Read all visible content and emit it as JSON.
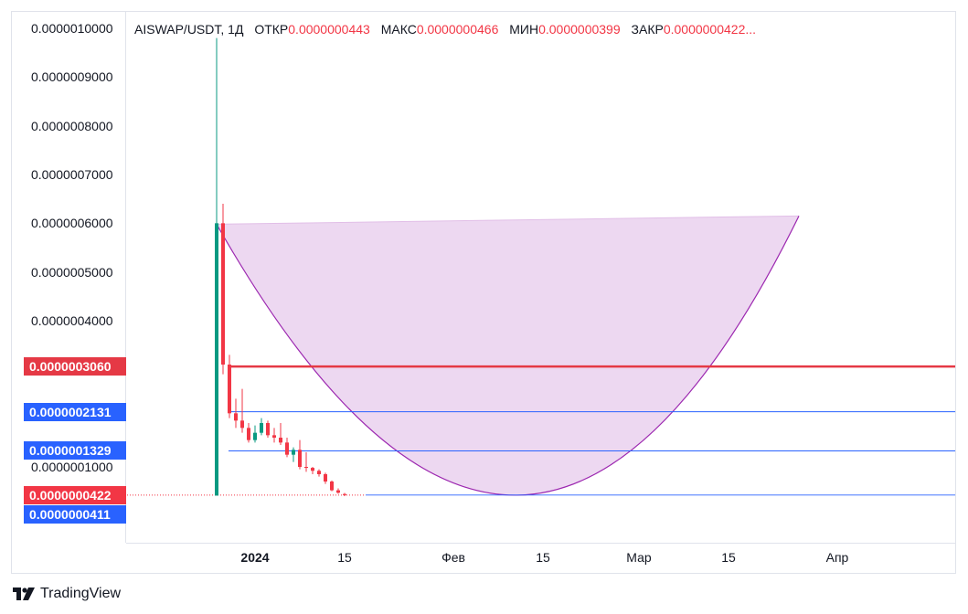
{
  "legend": {
    "symbol": "AISWAP/USDT, 1Д",
    "open_label": "ОТКР",
    "open_value": "0.0000000443",
    "high_label": "МАКС",
    "high_value": "0.0000000466",
    "low_label": "МИН",
    "low_value": "0.0000000399",
    "close_label": "ЗАКР",
    "close_value": "0.0000000422..."
  },
  "brand": {
    "name": "TradingView"
  },
  "chart_data": {
    "type": "candlestick",
    "price_ticks": [
      {
        "value": 1e-06,
        "label": "0.0000010000"
      },
      {
        "value": 9e-07,
        "label": "0.0000009000"
      },
      {
        "value": 8e-07,
        "label": "0.0000008000"
      },
      {
        "value": 7e-07,
        "label": "0.0000007000"
      },
      {
        "value": 6e-07,
        "label": "0.0000006000"
      },
      {
        "value": 5e-07,
        "label": "0.0000005000"
      },
      {
        "value": 4e-07,
        "label": "0.0000004000"
      },
      {
        "value": 1e-07,
        "label": "0.0000001000"
      }
    ],
    "time_ticks": [
      {
        "date": "2024-01-01",
        "label": "2024"
      },
      {
        "date": "2024-01-15",
        "label": "15"
      },
      {
        "date": "2024-02-01",
        "label": "Фев"
      },
      {
        "date": "2024-02-15",
        "label": "15"
      },
      {
        "date": "2024-03-01",
        "label": "Мар"
      },
      {
        "date": "2024-03-15",
        "label": "15"
      },
      {
        "date": "2024-04-01",
        "label": "Апр"
      }
    ],
    "x_range": [
      "2023-12-15",
      "2024-04-05"
    ],
    "price_range": [
      0.0,
      1.03e-06
    ],
    "candles": [
      {
        "date": "2023-12-26",
        "o": 4.11e-08,
        "h": 9.8e-07,
        "l": 4.11e-08,
        "c": 6e-07
      },
      {
        "date": "2023-12-27",
        "o": 6e-07,
        "h": 6.4e-07,
        "l": 2.9e-07,
        "c": 3.1e-07
      },
      {
        "date": "2023-12-28",
        "o": 3.1e-07,
        "h": 3.3e-07,
        "l": 2e-07,
        "c": 2.1e-07
      },
      {
        "date": "2023-12-29",
        "o": 2.1e-07,
        "h": 2.4e-07,
        "l": 1.8e-07,
        "c": 1.95e-07
      },
      {
        "date": "2023-12-30",
        "o": 1.95e-07,
        "h": 2.6e-07,
        "l": 1.7e-07,
        "c": 1.8e-07
      },
      {
        "date": "2023-12-31",
        "o": 1.8e-07,
        "h": 1.9e-07,
        "l": 1.5e-07,
        "c": 1.55e-07
      },
      {
        "date": "2024-01-01",
        "o": 1.55e-07,
        "h": 1.85e-07,
        "l": 1.5e-07,
        "c": 1.7e-07
      },
      {
        "date": "2024-01-02",
        "o": 1.7e-07,
        "h": 2e-07,
        "l": 1.65e-07,
        "c": 1.9e-07
      },
      {
        "date": "2024-01-03",
        "o": 1.9e-07,
        "h": 1.95e-07,
        "l": 1.6e-07,
        "c": 1.65e-07
      },
      {
        "date": "2024-01-04",
        "o": 1.65e-07,
        "h": 1.8e-07,
        "l": 1.5e-07,
        "c": 1.6e-07
      },
      {
        "date": "2024-01-05",
        "o": 1.6e-07,
        "h": 1.9e-07,
        "l": 1.45e-07,
        "c": 1.5e-07
      },
      {
        "date": "2024-01-06",
        "o": 1.5e-07,
        "h": 1.6e-07,
        "l": 1.2e-07,
        "c": 1.25e-07
      },
      {
        "date": "2024-01-07",
        "o": 1.25e-07,
        "h": 1.4e-07,
        "l": 1.1e-07,
        "c": 1.35e-07
      },
      {
        "date": "2024-01-08",
        "o": 1.35e-07,
        "h": 1.55e-07,
        "l": 9.5e-08,
        "c": 1e-07
      },
      {
        "date": "2024-01-09",
        "o": 1e-07,
        "h": 1.3e-07,
        "l": 9e-08,
        "c": 9.8e-08
      },
      {
        "date": "2024-01-10",
        "o": 9.8e-08,
        "h": 1e-07,
        "l": 8.5e-08,
        "c": 9.2e-08
      },
      {
        "date": "2024-01-11",
        "o": 9.2e-08,
        "h": 9.5e-08,
        "l": 8e-08,
        "c": 8.5e-08
      },
      {
        "date": "2024-01-12",
        "o": 8.5e-08,
        "h": 8.8e-08,
        "l": 6.5e-08,
        "c": 7e-08
      },
      {
        "date": "2024-01-13",
        "o": 7e-08,
        "h": 7.2e-08,
        "l": 5e-08,
        "c": 5.2e-08
      },
      {
        "date": "2024-01-14",
        "o": 5.2e-08,
        "h": 5.6e-08,
        "l": 4.5e-08,
        "c": 4.7e-08
      },
      {
        "date": "2024-01-15",
        "o": 4.43e-08,
        "h": 4.66e-08,
        "l": 3.99e-08,
        "c": 4.22e-08
      }
    ],
    "horizontal_lines": [
      {
        "price": 3.06e-07,
        "label": "0.0000003060",
        "color": "#e53945",
        "style": "thick"
      },
      {
        "price": 2.131e-07,
        "label": "0.0000002131",
        "color": "#2962ff",
        "style": "thin"
      },
      {
        "price": 1.329e-07,
        "label": "0.0000001329",
        "color": "#2962ff",
        "style": "thin"
      }
    ],
    "current_price": {
      "price": 4.22e-08,
      "label": "0.0000000422",
      "color": "#f23645"
    },
    "low_marker": {
      "price": 4.11e-08,
      "label": "0.0000000411",
      "color": "#2962ff"
    },
    "cup_pattern": {
      "rim_start": {
        "date": "2023-12-26",
        "price": 5.98e-07
      },
      "rim_end": {
        "date": "2024-03-26",
        "price": 6.15e-07
      },
      "bottom": {
        "date": "2024-02-11",
        "price": 4.2e-08
      },
      "fill": "#e1bee7",
      "stroke": "#9c27b0"
    },
    "colors": {
      "up": "#089981",
      "down": "#f23645"
    }
  }
}
